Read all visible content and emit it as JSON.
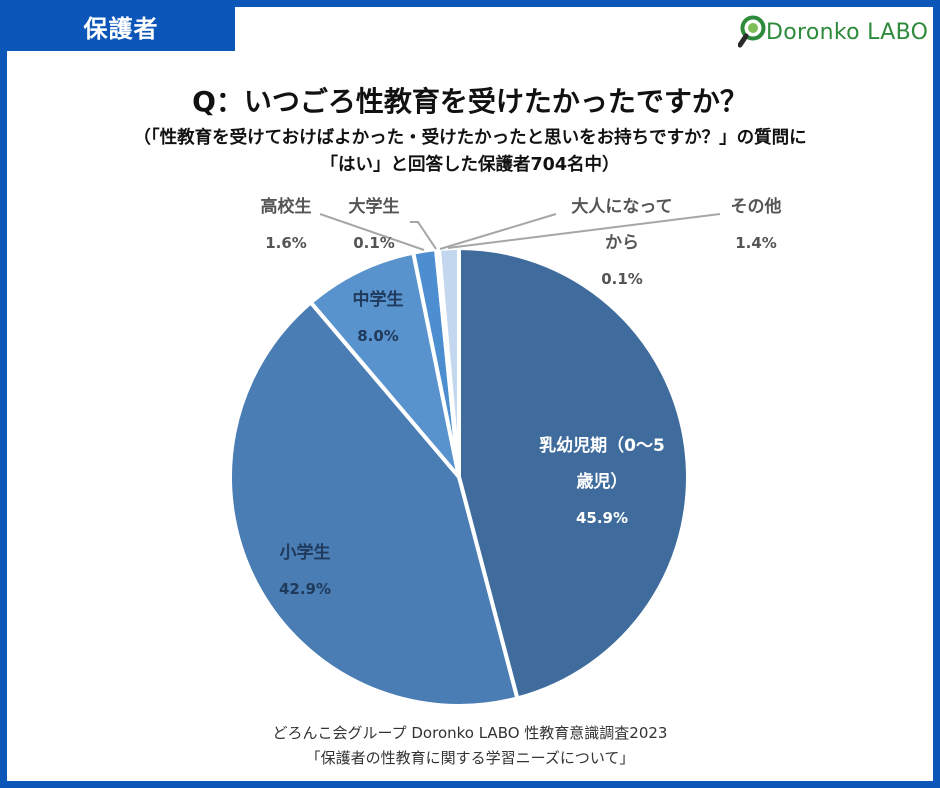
{
  "header": {
    "tag_label": "保護者",
    "logo_text": "Doronko LABO"
  },
  "heading": {
    "title": "Q：いつごろ性教育を受けたかったですか？",
    "subtitle_line1": "（「性教育を受けておけばよかった・受けたかったと思いをお持ちですか？」の質問に",
    "subtitle_line2": "「はい」と回答した保護者704名中）"
  },
  "footer": {
    "line1": "どろんこ会グループ Doronko LABO 性教育意識調査2023",
    "line2": "「保護者の性教育に関する学習ニーズについて」"
  },
  "colors": {
    "frame": "#0b56b8",
    "logo_green": "#2e8b3c"
  },
  "chart_data": {
    "type": "pie",
    "start_angle_deg": 0,
    "direction": "clockwise",
    "slices": [
      {
        "label_lines": [
          "乳幼児期（0〜5",
          "歳児）"
        ],
        "value": 45.9,
        "value_label": "45.9%",
        "color": "#3f6c9c",
        "label_style": "inside-light"
      },
      {
        "label_lines": [
          "小学生"
        ],
        "value": 42.9,
        "value_label": "42.9%",
        "color": "#4a7db4",
        "label_style": "inside-dark"
      },
      {
        "label_lines": [
          "中学生"
        ],
        "value": 8.0,
        "value_label": "8.0%",
        "color": "#5993ce",
        "label_style": "inside-dark"
      },
      {
        "label_lines": [
          "高校生"
        ],
        "value": 1.6,
        "value_label": "1.6%",
        "color": "#4c8ed0",
        "label_style": "outside"
      },
      {
        "label_lines": [
          "大学生"
        ],
        "value": 0.1,
        "value_label": "0.1%",
        "color": "#90b8e2",
        "label_style": "outside"
      },
      {
        "label_lines": [
          "大人になって",
          "から"
        ],
        "value": 0.1,
        "value_label": "0.1%",
        "color": "#a9c9ea",
        "label_style": "outside"
      },
      {
        "label_lines": [
          "その他"
        ],
        "value": 1.4,
        "value_label": "1.4%",
        "color": "#c3d7ee",
        "label_style": "outside"
      }
    ]
  }
}
